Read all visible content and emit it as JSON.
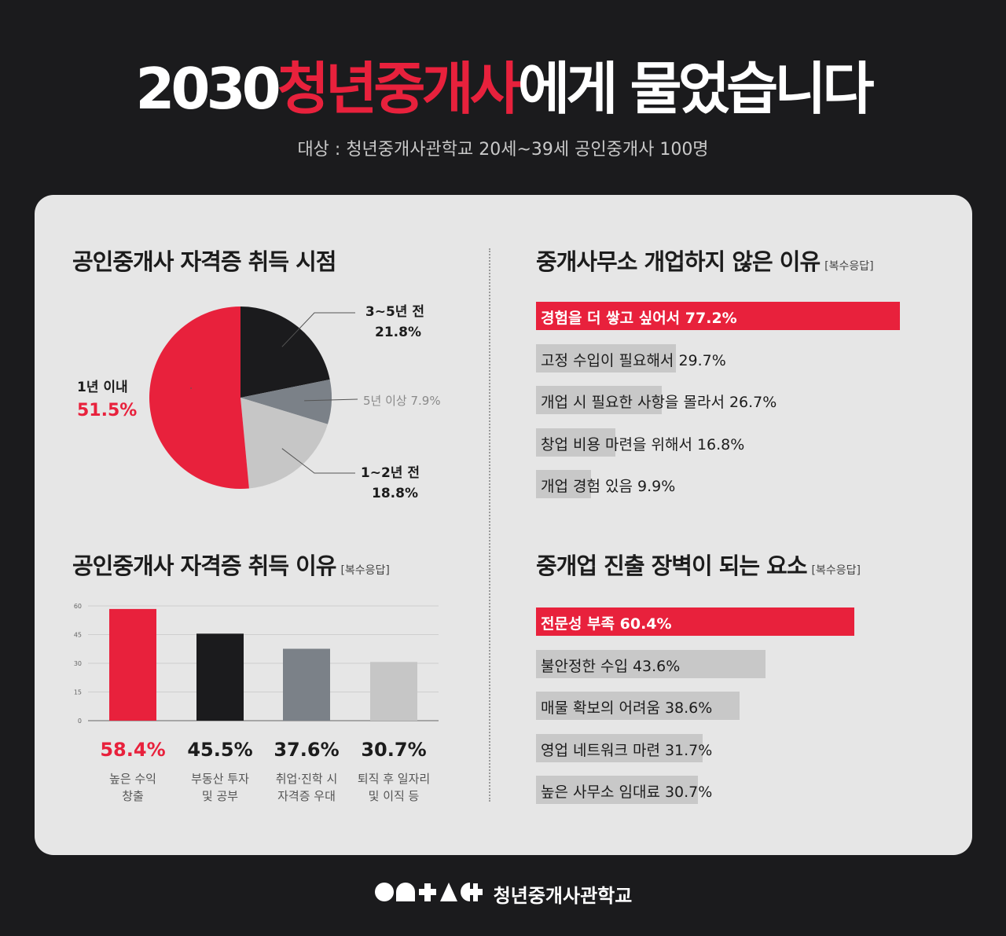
{
  "header": {
    "title_prefix": "2030",
    "title_highlight": "청년중개사",
    "title_suffix": "에게 물었습니다",
    "subtitle": "대상 : 청년중개사관학교 20세~39세 공인중개사 100명"
  },
  "colors": {
    "accent": "#e8213c",
    "dark": "#1b1b1d",
    "card": "#e6e6e6"
  },
  "sections": {
    "pie_title": "공인중개사 자격증 취득 시점",
    "reasons_title": "공인중개사 자격증 취득 이유",
    "reasons_note": "[복수응답]",
    "noopen_title": "중개사무소 개업하지 않은 이유",
    "noopen_note": "[복수응답]",
    "barrier_title": "중개업 진출 장벽이 되는 요소",
    "barrier_note": "[복수응답]"
  },
  "pie_labels": {
    "within1_name": "1년 이내",
    "within1_value": "51.5%",
    "y3to5_name": "3~5년 전",
    "y3to5_value": "21.8%",
    "over5": "5년 이상 7.9%",
    "y1to2_name": "1~2년 전",
    "y1to2_value": "18.8%"
  },
  "reason_labels": {
    "values": [
      "58.4%",
      "45.5%",
      "37.6%",
      "30.7%"
    ],
    "cats_line1": [
      "높은 수익",
      "부동산 투자",
      "취업·진학 시",
      "퇴직 후 일자리"
    ],
    "cats_line2": [
      "창출",
      "및 공부",
      "자격증 우대",
      "및 이직 등"
    ]
  },
  "noopen_labels": [
    "경험을 더 쌓고 싶어서 77.2%",
    "고정 수입이 필요해서 29.7%",
    "개업 시 필요한 사항을 몰라서 26.7%",
    "창업 비용 마련을 위해서 16.8%",
    "개업 경험 있음 9.9%"
  ],
  "barrier_labels": [
    "전문성 부족  60.4%",
    "불안정한 수입 43.6%",
    "매물 확보의 어려움 38.6%",
    "영업 네트워크 마련 31.7%",
    "높은 사무소 임대료 30.7%"
  ],
  "footer": {
    "name": "청년중개사관학교",
    "logo_icon": "ontact-logo-icon"
  },
  "chart_data": [
    {
      "type": "pie",
      "title": "공인중개사 자격증 취득 시점",
      "categories": [
        "1년 이내",
        "3~5년 전",
        "5년 이상",
        "1~2년 전"
      ],
      "values": [
        51.5,
        21.8,
        7.9,
        18.8
      ],
      "colors": [
        "#e8213c",
        "#1b1b1d",
        "#7b8188",
        "#c6c6c6"
      ]
    },
    {
      "type": "bar",
      "title": "공인중개사 자격증 취득 이유",
      "categories": [
        "높은 수익 창출",
        "부동산 투자 및 공부",
        "취업·진학 시 자격증 우대",
        "퇴직 후 일자리 및 이직 등"
      ],
      "values": [
        58.4,
        45.5,
        37.6,
        30.7
      ],
      "ylim": [
        0,
        60
      ],
      "yticks": [
        0,
        15,
        30,
        45,
        60
      ],
      "grid": true,
      "colors": [
        "#e8213c",
        "#1b1b1d",
        "#7b8188",
        "#c6c6c6"
      ]
    },
    {
      "type": "bar",
      "orientation": "horizontal",
      "title": "중개사무소 개업하지 않은 이유",
      "categories": [
        "경험을 더 쌓고 싶어서",
        "고정 수입이 필요해서",
        "개업 시 필요한 사항을 몰라서",
        "창업 비용 마련을 위해서",
        "개업 경험 있음"
      ],
      "values": [
        77.2,
        29.7,
        26.7,
        16.8,
        9.9
      ]
    },
    {
      "type": "bar",
      "orientation": "horizontal",
      "title": "중개업 진출 장벽이 되는 요소",
      "categories": [
        "전문성 부족",
        "불안정한 수입",
        "매물 확보의 어려움",
        "영업 네트워크 마련",
        "높은 사무소 임대료"
      ],
      "values": [
        60.4,
        43.6,
        38.6,
        31.7,
        30.7
      ]
    }
  ]
}
